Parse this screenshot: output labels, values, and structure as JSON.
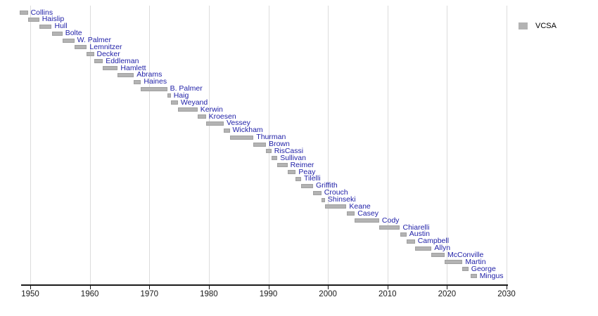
{
  "chart_data": {
    "type": "bar",
    "variant": "horizontal-timeline-gantt",
    "title": "",
    "xlabel": "",
    "ylabel": "",
    "legend": [
      {
        "label": "VCSA",
        "color": "#b3b3b3"
      }
    ],
    "legend_position": "top-right",
    "x_axis": {
      "range": [
        1948.0,
        2030.3
      ],
      "ticks": [
        1950,
        1960,
        1970,
        1980,
        1990,
        2000,
        2010,
        2020,
        2030
      ],
      "gridlines": true,
      "gridline_color": "#dcdcdc"
    },
    "label_color": "#2121a8",
    "bar_color": "#b3b3b3",
    "series": [
      {
        "name": "Collins",
        "start": 1948.2,
        "end": 1949.6
      },
      {
        "name": "Haislip",
        "start": 1949.6,
        "end": 1951.5
      },
      {
        "name": "Hull",
        "start": 1951.5,
        "end": 1953.6
      },
      {
        "name": "Bolte",
        "start": 1953.6,
        "end": 1955.4
      },
      {
        "name": "W. Palmer",
        "start": 1955.4,
        "end": 1957.4
      },
      {
        "name": "Lemnitzer",
        "start": 1957.4,
        "end": 1959.5
      },
      {
        "name": "Decker",
        "start": 1959.5,
        "end": 1960.7
      },
      {
        "name": "Eddleman",
        "start": 1960.7,
        "end": 1962.2
      },
      {
        "name": "Hamlett",
        "start": 1962.2,
        "end": 1964.7
      },
      {
        "name": "Abrams",
        "start": 1964.7,
        "end": 1967.4
      },
      {
        "name": "Haines",
        "start": 1967.4,
        "end": 1968.6
      },
      {
        "name": "B. Palmer",
        "start": 1968.6,
        "end": 1973.0
      },
      {
        "name": "Haig",
        "start": 1973.0,
        "end": 1973.6
      },
      {
        "name": "Weyand",
        "start": 1973.6,
        "end": 1974.8
      },
      {
        "name": "Kerwin",
        "start": 1974.8,
        "end": 1978.1
      },
      {
        "name": "Kroesen",
        "start": 1978.1,
        "end": 1979.5
      },
      {
        "name": "Vessey",
        "start": 1979.5,
        "end": 1982.5
      },
      {
        "name": "Wickham",
        "start": 1982.5,
        "end": 1983.5
      },
      {
        "name": "Thurman",
        "start": 1983.5,
        "end": 1987.5
      },
      {
        "name": "Brown",
        "start": 1987.5,
        "end": 1989.6
      },
      {
        "name": "RisCassi",
        "start": 1989.6,
        "end": 1990.5
      },
      {
        "name": "Sullivan",
        "start": 1990.5,
        "end": 1991.5
      },
      {
        "name": "Reimer",
        "start": 1991.5,
        "end": 1993.2
      },
      {
        "name": "Peay",
        "start": 1993.2,
        "end": 1994.6
      },
      {
        "name": "Tilelli",
        "start": 1994.6,
        "end": 1995.5
      },
      {
        "name": "Griffith",
        "start": 1995.5,
        "end": 1997.5
      },
      {
        "name": "Crouch",
        "start": 1997.5,
        "end": 1998.9
      },
      {
        "name": "Shinseki",
        "start": 1998.9,
        "end": 1999.5
      },
      {
        "name": "Keane",
        "start": 1999.5,
        "end": 2003.1
      },
      {
        "name": "Casey",
        "start": 2003.2,
        "end": 2004.5
      },
      {
        "name": "Cody",
        "start": 2004.5,
        "end": 2008.6
      },
      {
        "name": "Chiarelli",
        "start": 2008.6,
        "end": 2012.1
      },
      {
        "name": "Austin",
        "start": 2012.1,
        "end": 2013.2
      },
      {
        "name": "Campbell",
        "start": 2013.2,
        "end": 2014.6
      },
      {
        "name": "Allyn",
        "start": 2014.6,
        "end": 2017.4
      },
      {
        "name": "McConville",
        "start": 2017.4,
        "end": 2019.6
      },
      {
        "name": "Martin",
        "start": 2019.6,
        "end": 2022.6
      },
      {
        "name": "George",
        "start": 2022.6,
        "end": 2023.6
      },
      {
        "name": "Mingus",
        "start": 2024.0,
        "end": 2025.0
      }
    ]
  }
}
